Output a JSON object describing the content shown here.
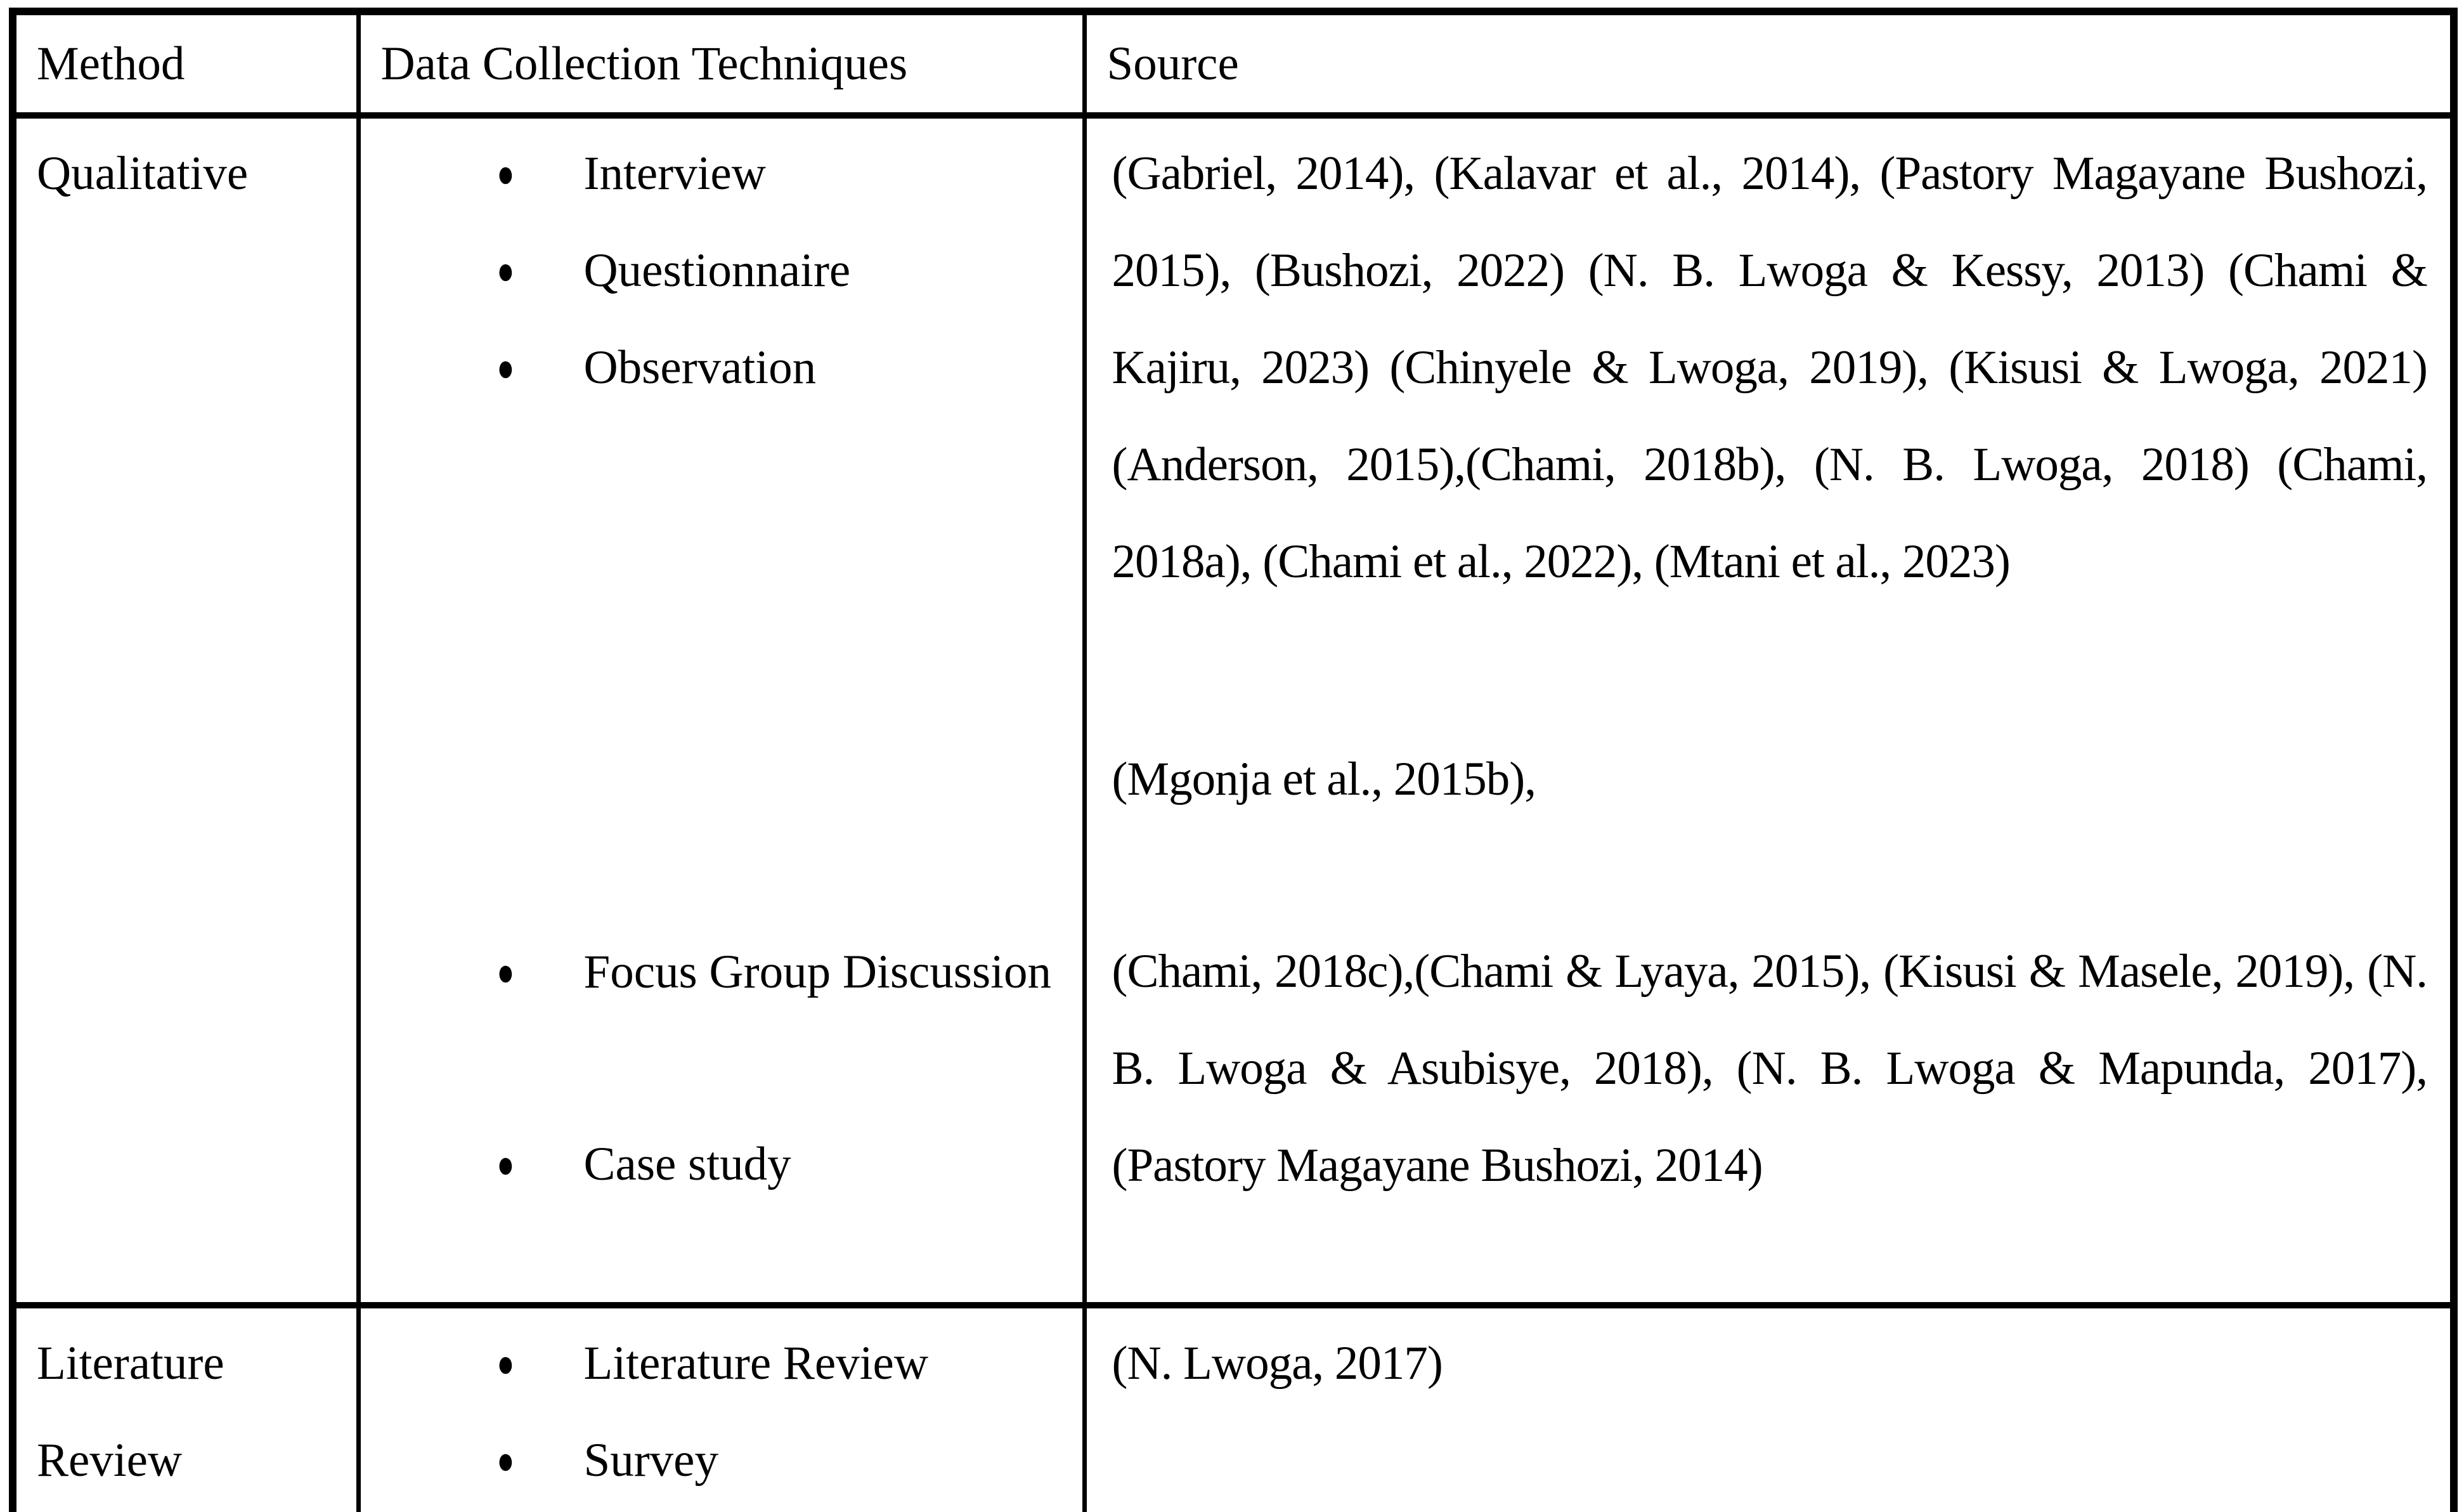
{
  "colors": {
    "background": "#ffffff",
    "border": "#000000",
    "text": "#000000"
  },
  "icons": {
    "bullet": "●"
  },
  "table": {
    "columns": [
      {
        "label": "Method"
      },
      {
        "label": "Data Collection Techniques"
      },
      {
        "label": "Source"
      }
    ],
    "rows": [
      {
        "method": "Qualitative",
        "techniques": [
          {
            "label": "Interview"
          },
          {
            "label": "Questionnaire"
          },
          {
            "label": "Observation"
          },
          {
            "label": "Focus Group Discussion"
          },
          {
            "label": "Case study"
          }
        ],
        "sources": [
          {
            "text": "(Gabriel, 2014), (Kalavar et al., 2014), (Pastory Magayane Bushozi, 2015), (Bushozi, 2022) (N. B. Lwoga & Kessy, 2013) (Chami & Kajiru, 2023) (Chinyele & Lwoga, 2019), (Kisusi & Lwoga, 2021) (Anderson, 2015),(Chami, 2018b), (N. B. Lwoga, 2018) (Chami, 2018a), (Chami et al., 2022), (Mtani et al., 2023)"
          },
          {
            "text": "(Mgonja et al., 2015b),"
          },
          {
            "text": "(Chami, 2018c),(Chami & Lyaya, 2015), (Kisusi & Masele, 2019), (N. B. Lwoga & Asubisye, 2018), (N. B. Lwoga & Mapunda, 2017), (Pastory Magayane Bushozi, 2014)"
          }
        ]
      },
      {
        "method": "Literature Review",
        "techniques": [
          {
            "label": "Literature Review"
          },
          {
            "label": "Survey"
          }
        ],
        "sources": [
          {
            "text": "(N. Lwoga, 2017)"
          }
        ]
      }
    ]
  }
}
